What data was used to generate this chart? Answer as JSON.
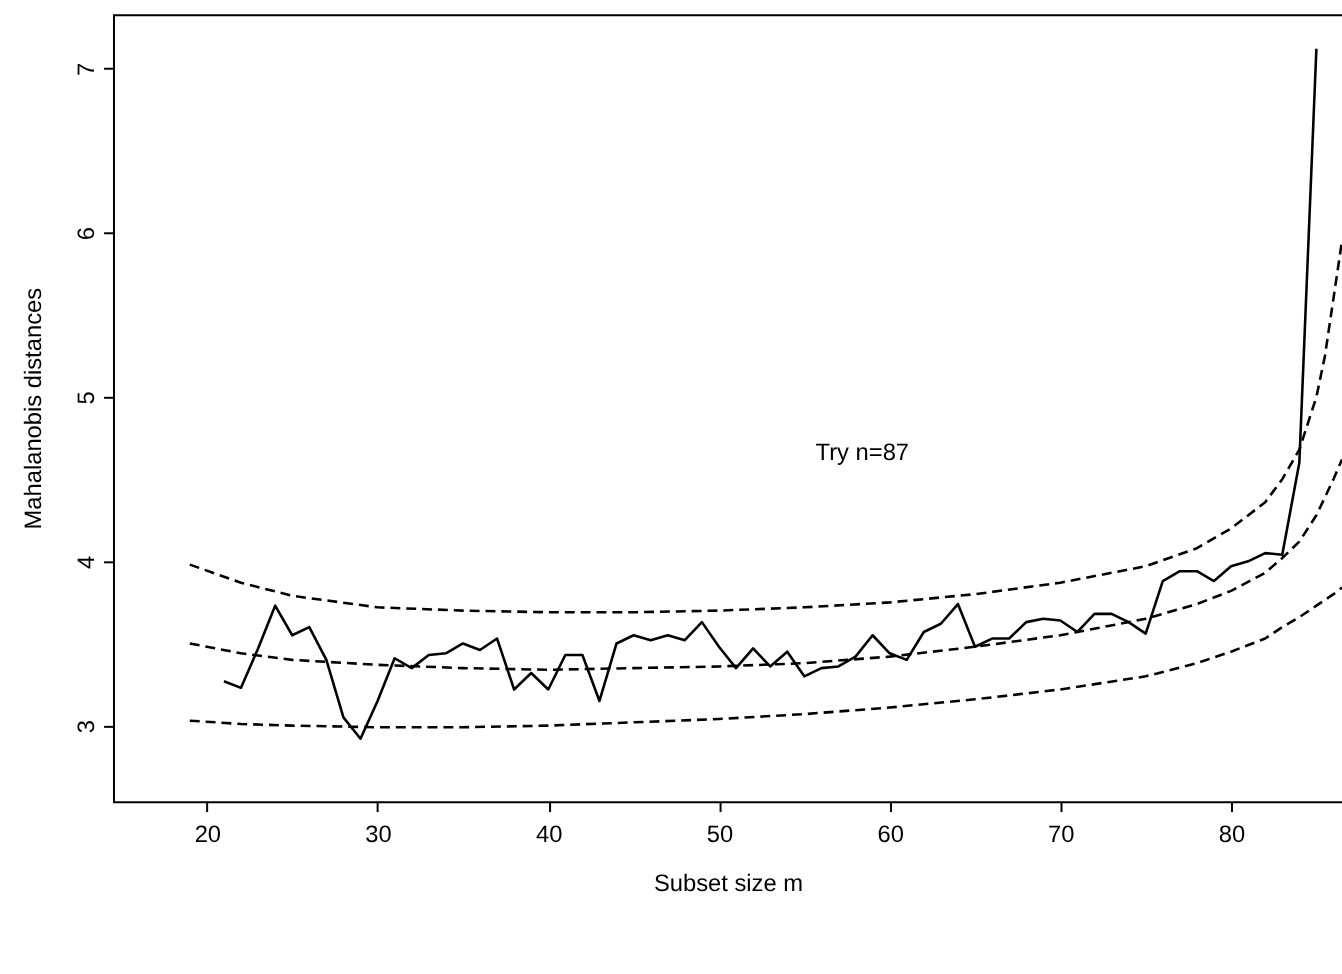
{
  "chart_data": {
    "type": "line",
    "xlabel": "Subset size m",
    "ylabel": "Mahalanobis distances",
    "annotations": [
      "Try n=87"
    ],
    "xlim": [
      14.5,
      86.5
    ],
    "ylim": [
      2.54,
      7.33
    ],
    "xticks": [
      20,
      30,
      40,
      50,
      60,
      70,
      80
    ],
    "yticks": [
      3,
      4,
      5,
      6,
      7
    ],
    "grid": false,
    "legend": false,
    "marker": "none",
    "series": [
      {
        "color": "#000000",
        "line_style": "solid",
        "x": [
          21,
          22,
          23,
          24,
          25,
          26,
          27,
          28,
          29,
          30,
          31,
          32,
          33,
          34,
          35,
          36,
          37,
          38,
          39,
          40,
          41,
          42,
          43,
          44,
          45,
          46,
          47,
          48,
          49,
          50,
          51,
          52,
          53,
          54,
          55,
          56,
          57,
          58,
          59,
          60,
          61,
          62,
          63,
          64,
          65,
          66,
          67,
          68,
          69,
          70,
          71,
          72,
          73,
          74,
          75,
          76,
          77,
          78,
          79,
          80,
          81,
          82,
          83,
          84,
          85
        ],
        "values": [
          3.27,
          3.23,
          3.47,
          3.73,
          3.55,
          3.6,
          3.4,
          3.05,
          2.92,
          3.15,
          3.41,
          3.35,
          3.43,
          3.44,
          3.5,
          3.46,
          3.53,
          3.22,
          3.32,
          3.22,
          3.43,
          3.43,
          3.15,
          3.5,
          3.55,
          3.52,
          3.55,
          3.52,
          3.63,
          3.48,
          3.35,
          3.47,
          3.36,
          3.45,
          3.3,
          3.35,
          3.36,
          3.42,
          3.55,
          3.44,
          3.4,
          3.57,
          3.62,
          3.74,
          3.48,
          3.53,
          3.53,
          3.63,
          3.65,
          3.64,
          3.57,
          3.68,
          3.68,
          3.63,
          3.56,
          3.88,
          3.94,
          3.94,
          3.88,
          3.97,
          4.0,
          4.05,
          4.04,
          4.6,
          7.12
        ]
      },
      {
        "color": "#000000",
        "line_style": "dashed",
        "x": [
          19,
          22,
          25,
          30,
          35,
          40,
          45,
          50,
          55,
          60,
          65,
          70,
          75,
          78,
          80,
          82,
          83,
          84,
          85,
          85.5,
          86.5
        ],
        "values": [
          3.98,
          3.87,
          3.79,
          3.72,
          3.7,
          3.69,
          3.69,
          3.7,
          3.72,
          3.75,
          3.8,
          3.87,
          3.97,
          4.08,
          4.2,
          4.36,
          4.5,
          4.68,
          5.0,
          5.25,
          5.95
        ]
      },
      {
        "color": "#000000",
        "line_style": "dashed",
        "x": [
          19,
          22,
          25,
          30,
          35,
          40,
          45,
          50,
          55,
          60,
          65,
          70,
          75,
          78,
          80,
          82,
          83,
          84,
          85,
          86,
          86.5
        ],
        "values": [
          3.5,
          3.44,
          3.4,
          3.37,
          3.35,
          3.34,
          3.35,
          3.36,
          3.38,
          3.42,
          3.48,
          3.55,
          3.65,
          3.74,
          3.82,
          3.93,
          4.02,
          4.12,
          4.28,
          4.5,
          4.62
        ]
      },
      {
        "color": "#000000",
        "line_style": "dashed",
        "x": [
          19,
          22,
          25,
          30,
          35,
          40,
          45,
          50,
          55,
          60,
          65,
          70,
          75,
          78,
          80,
          82,
          83,
          84,
          85,
          86,
          86.5
        ],
        "values": [
          3.03,
          3.01,
          3.0,
          2.99,
          2.99,
          3.0,
          3.02,
          3.04,
          3.07,
          3.11,
          3.16,
          3.22,
          3.3,
          3.38,
          3.45,
          3.53,
          3.6,
          3.66,
          3.73,
          3.8,
          3.84
        ]
      }
    ]
  }
}
